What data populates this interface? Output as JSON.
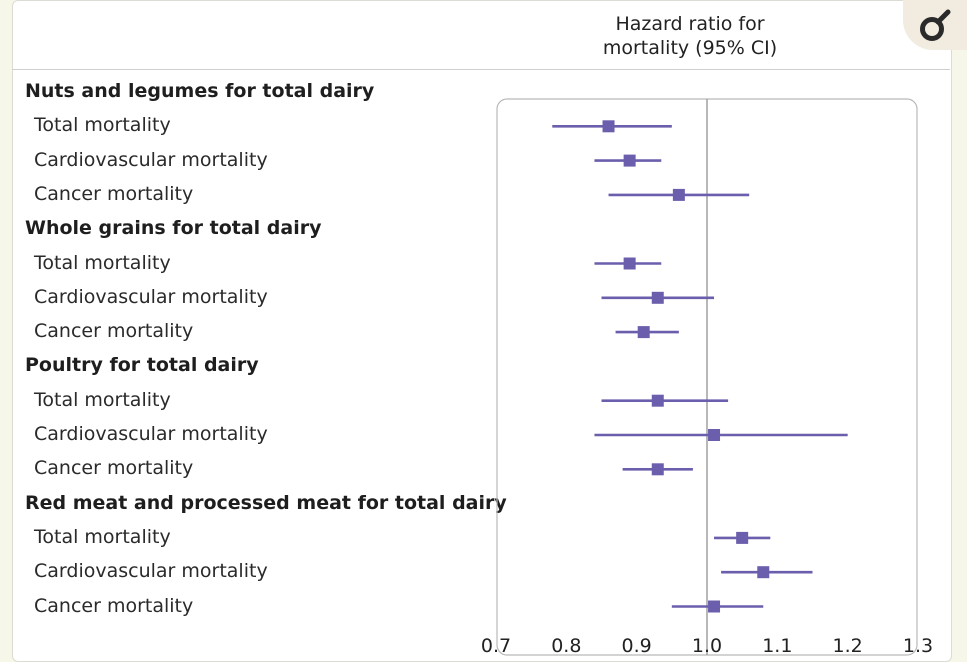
{
  "header": {
    "title": "Hazard ratio for\nmortality (95% CI)"
  },
  "chart_data": {
    "type": "forest",
    "title": "Hazard ratio for mortality (95% CI)",
    "xlabel": "",
    "xlim": [
      0.7,
      1.3
    ],
    "x_ticks": [
      "0.7",
      "0.8",
      "0.9",
      "1.0",
      "1.1",
      "1.2",
      "1.3"
    ],
    "reference_line": 1.0,
    "marker_color": "#6b5fad",
    "reference_color": "#9a9a9a",
    "groups": [
      {
        "name": "Nuts and legumes for total dairy",
        "rows": [
          {
            "label": "Total mortality",
            "hr": 0.86,
            "lower": 0.78,
            "upper": 0.95
          },
          {
            "label": "Cardiovascular mortality",
            "hr": 0.89,
            "lower": 0.84,
            "upper": 0.935
          },
          {
            "label": "Cancer mortality",
            "hr": 0.96,
            "lower": 0.86,
            "upper": 1.06
          }
        ]
      },
      {
        "name": "Whole grains for total dairy",
        "rows": [
          {
            "label": "Total mortality",
            "hr": 0.89,
            "lower": 0.84,
            "upper": 0.935
          },
          {
            "label": "Cardiovascular mortality",
            "hr": 0.93,
            "lower": 0.85,
            "upper": 1.01
          },
          {
            "label": "Cancer mortality",
            "hr": 0.91,
            "lower": 0.87,
            "upper": 0.96
          }
        ]
      },
      {
        "name": "Poultry for total dairy",
        "rows": [
          {
            "label": "Total mortality",
            "hr": 0.93,
            "lower": 0.85,
            "upper": 1.03
          },
          {
            "label": "Cardiovascular mortality",
            "hr": 1.01,
            "lower": 0.84,
            "upper": 1.2
          },
          {
            "label": "Cancer mortality",
            "hr": 0.93,
            "lower": 0.88,
            "upper": 0.98
          }
        ]
      },
      {
        "name": "Red meat and processed meat for total dairy",
        "rows": [
          {
            "label": "Total mortality",
            "hr": 1.05,
            "lower": 1.01,
            "upper": 1.09
          },
          {
            "label": "Cardiovascular mortality",
            "hr": 1.08,
            "lower": 1.02,
            "upper": 1.15
          },
          {
            "label": "Cancer mortality",
            "hr": 1.01,
            "lower": 0.95,
            "upper": 1.08
          }
        ]
      }
    ]
  }
}
